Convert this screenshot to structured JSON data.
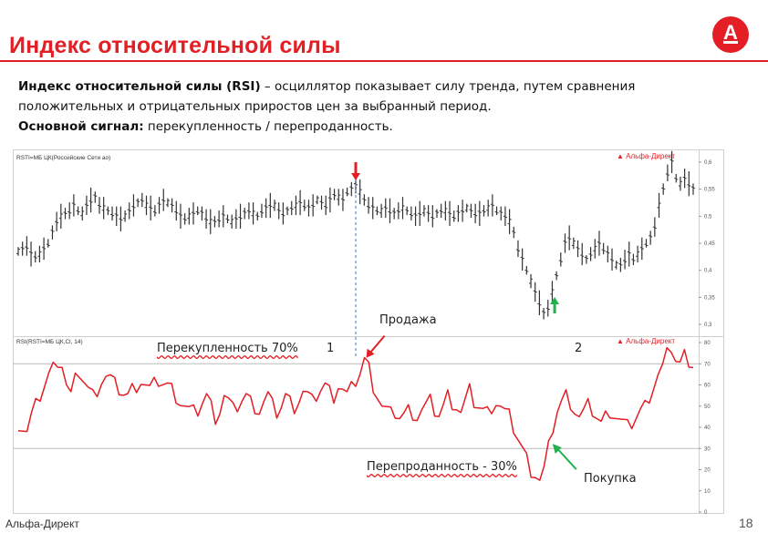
{
  "slide": {
    "title": "Индекс относительной силы",
    "logo_letter": "А",
    "desc_line1_bold": "Индекс относительной силы (RSI)",
    "desc_line1_rest": " – осциллятор показывает силу тренда, путем сравнения",
    "desc_line2": "положительных и отрицательных приростов цен за выбранный период.",
    "desc_line3_bold": "Основной сигнал:",
    "desc_line3_rest": " перекупленность / перепроданность.",
    "footer_brand": "Альфа-Директ",
    "page_number": "18"
  },
  "price_panel": {
    "label": "RSTI=МБ ЦК(Российские Сети ао)",
    "watermark": "Альфа-Директ",
    "y_ticks": [
      "0,6",
      "0,55",
      "0,5",
      "0,45",
      "0,4",
      "0,35",
      "0,3"
    ]
  },
  "rsi_panel": {
    "label": "RSI(RSTI=МБ ЦК,Cl, 14)",
    "watermark": "Альфа-Директ",
    "y_ticks": [
      "80",
      "70",
      "60",
      "50",
      "40",
      "30",
      "20",
      "10",
      "0"
    ],
    "overbought_level": 70,
    "oversold_level": 30
  },
  "annotations": {
    "sell": "Продажа",
    "overbought": "Перекупленность  70%",
    "signal1": "1",
    "signal2": "2",
    "oversold": "Перепроданность - 30%",
    "buy": "Покупка"
  },
  "colors": {
    "brand": "#e31e24",
    "rsi_line": "#e31e24",
    "bars": "#333333",
    "buy_arrow": "#22b14c",
    "sell_arrow": "#e31e24",
    "guide": "#3a6fd8"
  },
  "chart_data": [
    {
      "type": "line",
      "title": "RSTI=МБ ЦК(Российские Сети ао)",
      "ylim": [
        0.28,
        0.62
      ],
      "series": [
        {
          "name": "RSTI",
          "values": [
            0.435,
            0.44,
            0.445,
            0.43,
            0.425,
            0.43,
            0.44,
            0.45,
            0.47,
            0.49,
            0.5,
            0.505,
            0.51,
            0.52,
            0.51,
            0.505,
            0.52,
            0.53,
            0.535,
            0.52,
            0.515,
            0.51,
            0.505,
            0.5,
            0.495,
            0.5,
            0.51,
            0.52,
            0.525,
            0.53,
            0.52,
            0.515,
            0.51,
            0.52,
            0.53,
            0.525,
            0.52,
            0.51,
            0.5,
            0.495,
            0.5,
            0.505,
            0.51,
            0.505,
            0.495,
            0.49,
            0.49,
            0.495,
            0.5,
            0.495,
            0.49,
            0.495,
            0.5,
            0.505,
            0.51,
            0.505,
            0.5,
            0.51,
            0.515,
            0.52,
            0.52,
            0.51,
            0.505,
            0.51,
            0.515,
            0.52,
            0.525,
            0.52,
            0.515,
            0.52,
            0.53,
            0.525,
            0.52,
            0.53,
            0.54,
            0.535,
            0.53,
            0.545,
            0.55,
            0.56,
            0.545,
            0.53,
            0.52,
            0.515,
            0.51,
            0.51,
            0.515,
            0.51,
            0.505,
            0.51,
            0.515,
            0.51,
            0.505,
            0.5,
            0.505,
            0.51,
            0.505,
            0.5,
            0.505,
            0.51,
            0.51,
            0.505,
            0.5,
            0.505,
            0.51,
            0.515,
            0.51,
            0.505,
            0.505,
            0.51,
            0.515,
            0.52,
            0.51,
            0.505,
            0.5,
            0.49,
            0.47,
            0.44,
            0.42,
            0.4,
            0.38,
            0.36,
            0.34,
            0.32,
            0.33,
            0.36,
            0.39,
            0.42,
            0.45,
            0.46,
            0.45,
            0.44,
            0.43,
            0.42,
            0.43,
            0.44,
            0.45,
            0.44,
            0.43,
            0.42,
            0.41,
            0.41,
            0.42,
            0.43,
            0.42,
            0.43,
            0.44,
            0.45,
            0.46,
            0.48,
            0.52,
            0.55,
            0.58,
            0.6,
            0.57,
            0.56,
            0.57,
            0.56,
            0.55
          ]
        }
      ]
    },
    {
      "type": "line",
      "title": "RSI(RSTI=МБ ЦК,Cl, 14)",
      "ylim": [
        0,
        80
      ],
      "series": [
        {
          "name": "RSI",
          "values": [
            42,
            40,
            38,
            45,
            50,
            55,
            60,
            65,
            68,
            72,
            70,
            60,
            55,
            62,
            66,
            62,
            58,
            55,
            58,
            62,
            64,
            63,
            60,
            58,
            56,
            55,
            58,
            60,
            62,
            60,
            58,
            60,
            62,
            61,
            60,
            58,
            55,
            52,
            50,
            48,
            47,
            48,
            52,
            55,
            50,
            45,
            48,
            55,
            52,
            48,
            50,
            53,
            55,
            52,
            50,
            48,
            52,
            55,
            50,
            47,
            50,
            55,
            52,
            50,
            53,
            57,
            55,
            52,
            55,
            58,
            60,
            57,
            55,
            60,
            58,
            55,
            58,
            62,
            66,
            72,
            68,
            60,
            55,
            50,
            48,
            46,
            47,
            45,
            46,
            48,
            47,
            45,
            48,
            50,
            52,
            48,
            46,
            50,
            55,
            52,
            50,
            47,
            52,
            57,
            52,
            50,
            48,
            47,
            50,
            52,
            50,
            47,
            45,
            40,
            35,
            30,
            25,
            20,
            18,
            15,
            20,
            30,
            40,
            48,
            52,
            55,
            52,
            48,
            45,
            47,
            50,
            48,
            45,
            42,
            45,
            48,
            46,
            44,
            42,
            40,
            42,
            45,
            48,
            50,
            55,
            60,
            65,
            68,
            74,
            78,
            72,
            70,
            74,
            72,
            70
          ]
        }
      ]
    }
  ]
}
